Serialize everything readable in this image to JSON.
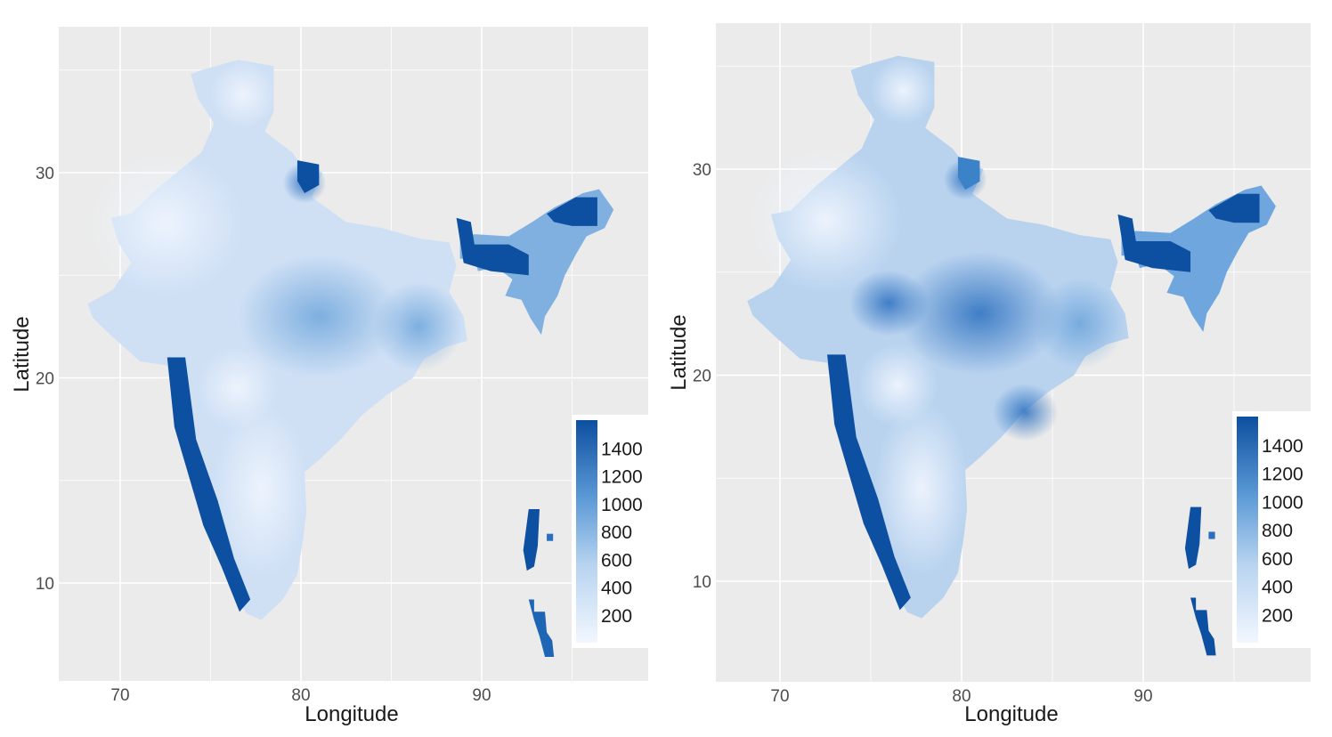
{
  "panels": [
    {
      "id": "left",
      "xlabel": "Longitude",
      "ylabel": "Latitude",
      "x_ticks": [
        "70",
        "80",
        "90"
      ],
      "y_ticks": [
        "30",
        "20",
        "10"
      ],
      "legend_ticks": [
        "1400",
        "1200",
        "1000",
        "800",
        "600",
        "400",
        "200"
      ]
    },
    {
      "id": "right",
      "xlabel": "Longitude",
      "ylabel": "Latitude",
      "x_ticks": [
        "70",
        "80",
        "90"
      ],
      "y_ticks": [
        "30",
        "20",
        "10"
      ],
      "legend_ticks": [
        "1400",
        "1200",
        "1000",
        "800",
        "600",
        "400",
        "200"
      ]
    }
  ],
  "chart_data": [
    {
      "type": "heatmap",
      "x_tick_values": [
        70,
        80,
        90
      ],
      "y_tick_values": [
        30,
        20,
        10
      ],
      "legend_tick_values": [
        1400,
        1200,
        1000,
        800,
        600,
        400,
        200
      ],
      "colorscale_range": [
        0,
        1600
      ],
      "colors": {
        "low": "#eef4fd",
        "high": "#0d4fa0"
      },
      "legend_placement": "bottom-right",
      "grid": true
    },
    {
      "type": "heatmap",
      "x_tick_values": [
        70,
        80,
        90
      ],
      "y_tick_values": [
        30,
        20,
        10
      ],
      "legend_tick_values": [
        1400,
        1200,
        1000,
        800,
        600,
        400,
        200
      ],
      "colorscale_range": [
        0,
        1600
      ],
      "colors": {
        "low": "#eef4fd",
        "high": "#0d4fa0"
      },
      "legend_placement": "bottom-right",
      "grid": true
    }
  ]
}
